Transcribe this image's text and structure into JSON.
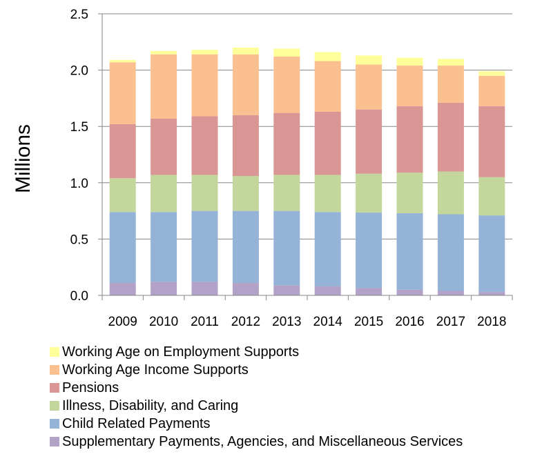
{
  "chart_data": {
    "type": "bar",
    "stacked": true,
    "title": "",
    "xlabel": "",
    "ylabel": "Millions",
    "ylim": [
      0,
      2.5
    ],
    "yticks": [
      "0.0",
      "0.5",
      "1.0",
      "1.5",
      "2.0",
      "2.5"
    ],
    "grid": true,
    "legend_position": "bottom",
    "categories": [
      "2009",
      "2010",
      "2011",
      "2012",
      "2013",
      "2014",
      "2015",
      "2016",
      "2017",
      "2018"
    ],
    "series": [
      {
        "name": "Supplementary Payments, Agencies, and Miscellaneous Services",
        "color": "#b3a2c7",
        "values": [
          0.11,
          0.12,
          0.12,
          0.11,
          0.09,
          0.08,
          0.065,
          0.05,
          0.04,
          0.03
        ]
      },
      {
        "name": "Child Related Payments",
        "color": "#95b3d7",
        "values": [
          0.63,
          0.62,
          0.63,
          0.64,
          0.66,
          0.66,
          0.67,
          0.68,
          0.68,
          0.68
        ]
      },
      {
        "name": "Illness, Disability, and Caring",
        "color": "#c3d69b",
        "values": [
          0.3,
          0.33,
          0.32,
          0.31,
          0.32,
          0.33,
          0.345,
          0.36,
          0.38,
          0.34
        ]
      },
      {
        "name": "Pensions",
        "color": "#d99694",
        "values": [
          0.48,
          0.5,
          0.52,
          0.54,
          0.55,
          0.56,
          0.57,
          0.59,
          0.61,
          0.63
        ]
      },
      {
        "name": "Working Age Income Supports",
        "color": "#fac090",
        "values": [
          0.55,
          0.57,
          0.55,
          0.54,
          0.5,
          0.45,
          0.4,
          0.36,
          0.33,
          0.27
        ]
      },
      {
        "name": "Working Age on Employment Supports",
        "color": "#ffff99",
        "values": [
          0.02,
          0.03,
          0.04,
          0.06,
          0.07,
          0.08,
          0.08,
          0.07,
          0.06,
          0.04
        ]
      }
    ]
  }
}
